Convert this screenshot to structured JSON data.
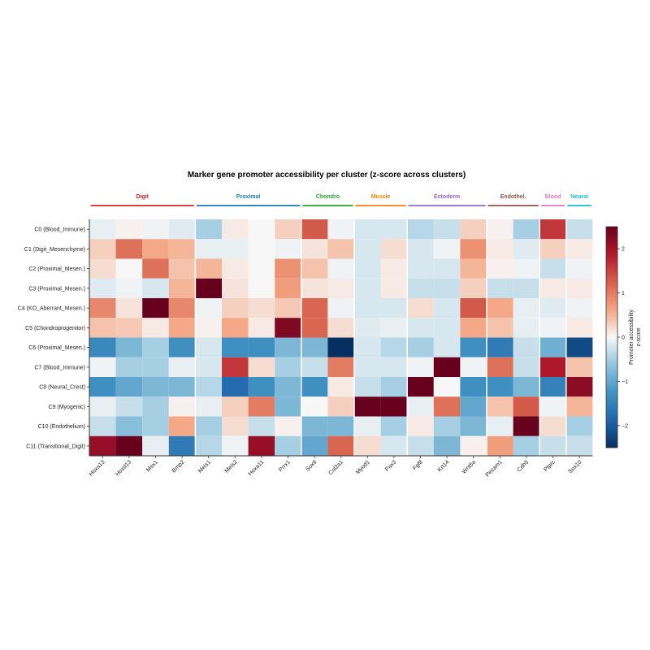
{
  "chart_data": {
    "type": "heatmap",
    "title": "Marker gene promoter accessibility per cluster (z-score across clusters)",
    "rows": [
      "C0 (Blood_Immune)",
      "C1 (Digit_Mesenchyme)",
      "C2 (Proximal_Mesen.)",
      "C3 (Proximal_Mesen.)",
      "C4 (KO_Aberrant_Mesen.)",
      "C5 (Chondroprogenitor)",
      "C6 (Proximal_Mesen.)",
      "C7 (Blood_Immune)",
      "C8 (Neural_Crest)",
      "C9 (Myogenic)",
      "C10 (Endothelium)",
      "C11 (Transitional_Digit)"
    ],
    "columns": [
      "Hoxa13",
      "Hoxd13",
      "Msx1",
      "Bmp2",
      "Meis1",
      "Meis2",
      "Hoxa11",
      "Prrx1",
      "Sox9",
      "Col2a1",
      "Myod1",
      "Pax3",
      "Fgf8",
      "Krt14",
      "Wnt5a",
      "Pecam1",
      "Cdh5",
      "Ptprc",
      "Sox10"
    ],
    "groups": [
      {
        "name": "Digit",
        "start": 0,
        "end": 3,
        "color": "#d62728"
      },
      {
        "name": "Proximal",
        "start": 4,
        "end": 7,
        "color": "#1f77b4"
      },
      {
        "name": "Chondro",
        "start": 8,
        "end": 9,
        "color": "#2ca02c"
      },
      {
        "name": "Muscle",
        "start": 10,
        "end": 11,
        "color": "#ff7f0e"
      },
      {
        "name": "Ectoderm",
        "start": 12,
        "end": 14,
        "color": "#9467bd"
      },
      {
        "name": "Endothel.",
        "start": 15,
        "end": 16,
        "color": "#8c564b"
      },
      {
        "name": "Blood",
        "start": 17,
        "end": 17,
        "color": "#e377c2"
      },
      {
        "name": "Neural",
        "start": 18,
        "end": 18,
        "color": "#17becf"
      }
    ],
    "values": [
      [
        -0.1,
        0.05,
        -0.05,
        -0.15,
        -0.5,
        0.1,
        0.0,
        0.3,
        1.3,
        -0.05,
        -0.2,
        -0.2,
        -0.4,
        -0.3,
        0.3,
        0.05,
        -0.5,
        1.6,
        -0.3
      ],
      [
        0.3,
        1.1,
        0.6,
        0.5,
        -0.1,
        -0.1,
        0.0,
        -0.05,
        0.15,
        0.4,
        -0.2,
        0.2,
        -0.2,
        -0.05,
        0.8,
        0.1,
        -0.15,
        0.3,
        0.1
      ],
      [
        0.2,
        0.0,
        1.1,
        0.4,
        0.5,
        0.1,
        0.0,
        0.8,
        0.4,
        -0.05,
        -0.2,
        0.1,
        -0.2,
        -0.2,
        0.5,
        0.05,
        -0.05,
        -0.3,
        -0.05
      ],
      [
        -0.15,
        -0.05,
        -0.2,
        0.5,
        2.5,
        0.15,
        0.0,
        0.7,
        0.15,
        0.1,
        -0.2,
        0.1,
        -0.3,
        -0.3,
        0.3,
        -0.3,
        -0.3,
        0.1,
        0.1
      ],
      [
        0.9,
        0.15,
        2.5,
        0.9,
        -0.05,
        0.3,
        0.2,
        0.35,
        1.2,
        -0.05,
        -0.2,
        -0.2,
        0.2,
        -0.2,
        1.3,
        0.6,
        -0.1,
        -0.15,
        -0.05
      ],
      [
        0.4,
        0.35,
        0.1,
        0.6,
        0.05,
        0.6,
        0.1,
        2.3,
        1.2,
        0.2,
        -0.15,
        -0.1,
        -0.2,
        -0.2,
        0.6,
        0.4,
        -0.1,
        -0.05,
        0.1
      ],
      [
        -1.4,
        -0.8,
        -0.5,
        -1.3,
        -0.2,
        -1.3,
        -1.3,
        -0.8,
        -0.8,
        -2.5,
        -0.2,
        -0.4,
        -0.5,
        -0.2,
        -1.3,
        -1.6,
        -0.3,
        -0.9,
        -2.2
      ],
      [
        -0.05,
        -0.5,
        -0.5,
        -0.1,
        -0.2,
        1.6,
        0.2,
        -0.5,
        -0.3,
        1.0,
        -0.2,
        -0.2,
        -0.05,
        2.5,
        -0.05,
        1.1,
        -0.3,
        1.9,
        0.4
      ],
      [
        -1.3,
        -1.0,
        -0.8,
        -0.8,
        -0.4,
        -1.8,
        -1.3,
        -0.8,
        -1.3,
        0.1,
        -0.3,
        -0.5,
        2.5,
        0.0,
        -1.3,
        -1.3,
        -0.8,
        -1.5,
        2.2
      ],
      [
        -0.1,
        -0.3,
        -0.5,
        0.05,
        -0.1,
        0.3,
        1.0,
        -0.8,
        0.0,
        0.3,
        2.5,
        2.5,
        -0.1,
        1.1,
        -1.0,
        0.4,
        1.3,
        -0.05,
        0.5
      ],
      [
        -0.3,
        -0.7,
        -0.5,
        0.6,
        -0.5,
        0.2,
        -0.3,
        0.05,
        -0.8,
        -0.8,
        -0.1,
        -0.5,
        0.1,
        -0.5,
        -0.8,
        -0.1,
        2.5,
        0.2,
        -0.5
      ],
      [
        2.1,
        2.5,
        -0.1,
        -1.6,
        -0.4,
        -0.05,
        2.1,
        -0.5,
        -1.0,
        1.2,
        0.2,
        -0.2,
        -0.3,
        -0.8,
        0.05,
        0.7,
        -0.5,
        -0.3,
        -0.3
      ]
    ],
    "colorbar": {
      "label": "Promoter accessibility\nz-score",
      "range": [
        -2.5,
        2.5
      ],
      "ticks": [
        -2,
        -1,
        0,
        1,
        2
      ],
      "tick_labels": [
        "−2",
        "−1",
        "0",
        "1",
        "2"
      ],
      "colormap": "RdBu_r"
    }
  }
}
